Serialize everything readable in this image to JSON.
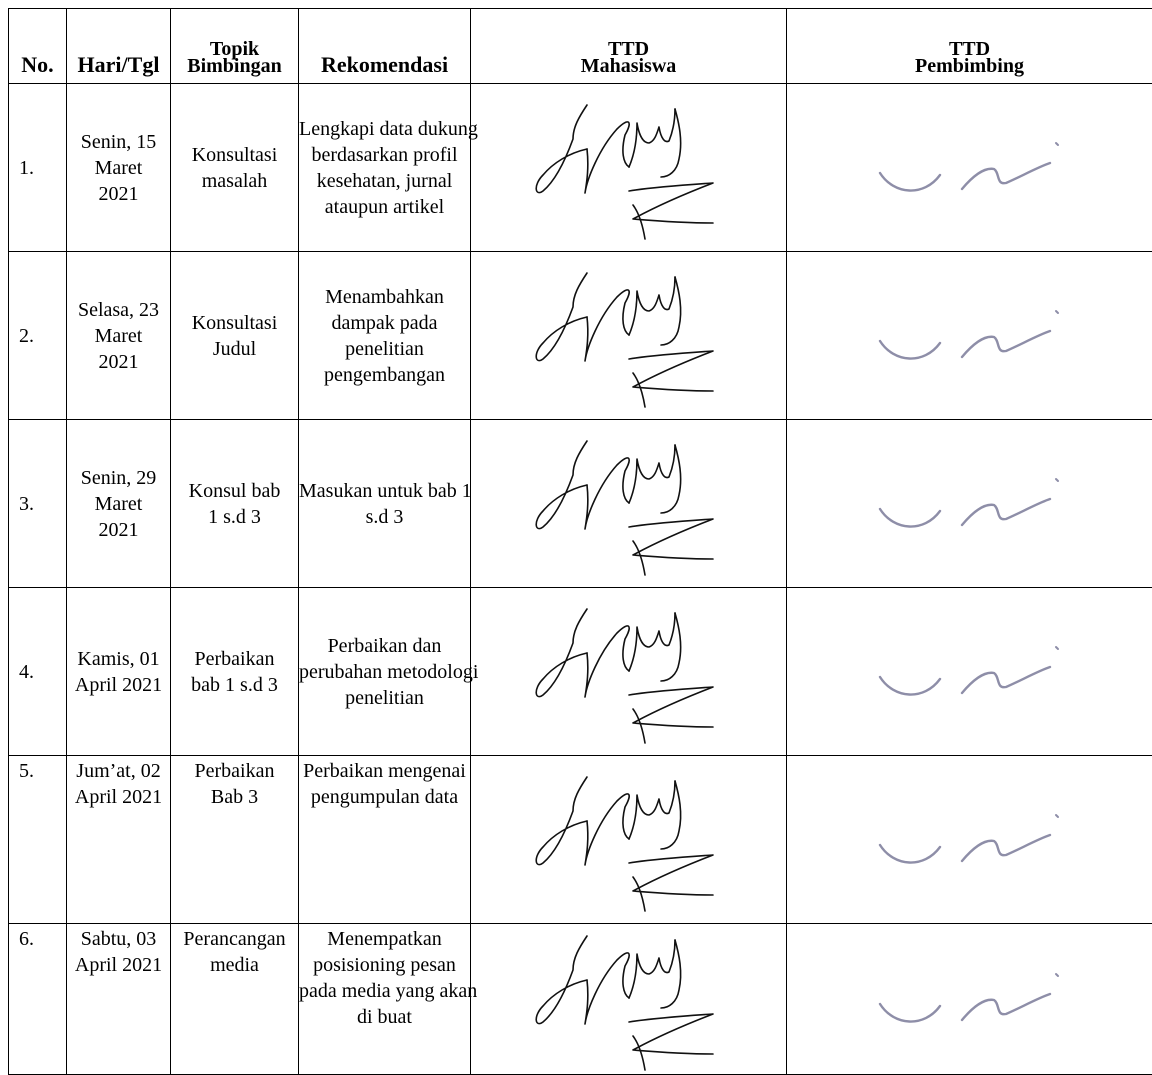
{
  "headers": {
    "no": "No.",
    "date": "Hari/Tgl",
    "topic_l1": "Topik",
    "topic_l2": "Bimbingan",
    "recommendation": "Rekomendasi",
    "student_sig_l1": "TTD",
    "student_sig_l2": "Mahasiswa",
    "supervisor_sig_l1": "TTD",
    "supervisor_sig_l2": "Pembimbing"
  },
  "rows": [
    {
      "no": "1.",
      "date": [
        "Senin, 15",
        "Maret",
        "2021"
      ],
      "topic": [
        "Konsultasi",
        "masalah"
      ],
      "recommendation": [
        "Lengkapi data dukung",
        "berdasarkan profil",
        "kesehatan, jurnal",
        "ataupun artikel"
      ]
    },
    {
      "no": "2.",
      "date": [
        "Selasa, 23",
        "Maret",
        "2021"
      ],
      "topic": [
        "Konsultasi",
        "Judul"
      ],
      "recommendation": [
        "Menambahkan",
        "dampak pada",
        "penelitian",
        "pengembangan"
      ]
    },
    {
      "no": "3.",
      "date": [
        "Senin, 29",
        "Maret",
        "2021"
      ],
      "topic": [
        "Konsul bab",
        "1 s.d 3"
      ],
      "recommendation": [
        "Masukan untuk bab 1",
        "s.d 3"
      ]
    },
    {
      "no": "4.",
      "date": [
        "Kamis, 01",
        "April 2021"
      ],
      "topic": [
        "Perbaikan",
        "bab 1 s.d 3"
      ],
      "recommendation": [
        "Perbaikan dan",
        "perubahan metodologi",
        "penelitian"
      ]
    },
    {
      "no": "5.",
      "date": [
        "Jum’at, 02",
        "April 2021"
      ],
      "topic": [
        "Perbaikan",
        "Bab 3"
      ],
      "recommendation": [
        "Perbaikan mengenai",
        "pengumpulan data"
      ]
    },
    {
      "no": "6.",
      "date": [
        "Sabtu, 03",
        "April 2021"
      ],
      "topic": [
        "Perancangan",
        "media"
      ],
      "recommendation": [
        "Menempatkan",
        "posisioning pesan",
        "pada media yang akan",
        "di buat"
      ]
    }
  ],
  "signature_colors": {
    "student": "#111111",
    "supervisor": "#8e8ea8"
  }
}
